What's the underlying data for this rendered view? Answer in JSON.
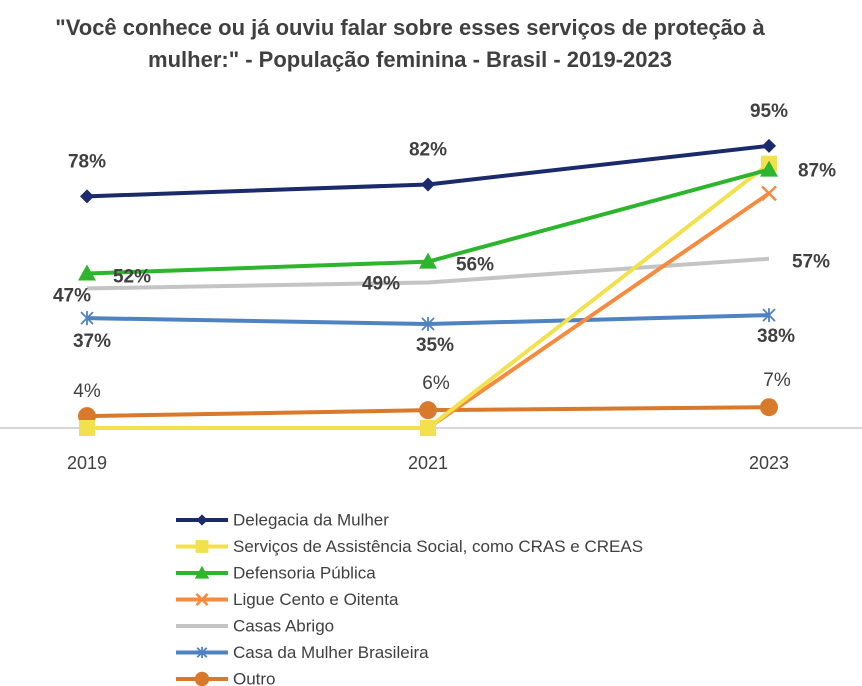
{
  "chart_data": {
    "type": "line",
    "title": "\"Você conhece ou já ouviu falar sobre esses serviços de proteção à mulher:\" - População feminina - Brasil - 2019-2023",
    "categories": [
      "2019",
      "2021",
      "2023"
    ],
    "ylim": [
      0,
      100
    ],
    "series": [
      {
        "name": "Delegacia da Mulher",
        "color": "#1b2a6b",
        "marker": "diamond",
        "values": [
          78,
          82,
          95
        ],
        "value_labels": [
          "78%",
          "82%",
          "95%"
        ]
      },
      {
        "name": "Serviços de Assistência Social, como CRAS e CREAS",
        "color": "#f2e14c",
        "marker": "square",
        "values": [
          0,
          0,
          89
        ]
      },
      {
        "name": "Defensoria Pública",
        "color": "#2db52d",
        "marker": "triangle",
        "values": [
          52,
          56,
          87
        ],
        "value_labels": [
          "52%",
          "56%",
          "87%"
        ]
      },
      {
        "name": "Ligue Cento e Oitenta",
        "color": "#f58b3f",
        "marker": "x",
        "values": [
          0,
          0,
          79
        ]
      },
      {
        "name": "Casas Abrigo",
        "color": "#c4c4c4",
        "marker": "none",
        "values": [
          47,
          49,
          57
        ],
        "value_labels": [
          "47%",
          "49%",
          "57%"
        ]
      },
      {
        "name": "Casa da Mulher Brasileira",
        "color": "#4f82c0",
        "marker": "star",
        "values": [
          37,
          35,
          38
        ],
        "value_labels": [
          "37%",
          "35%",
          "38%"
        ]
      },
      {
        "name": "Outro",
        "color": "#d9792b",
        "marker": "circle",
        "values": [
          4,
          6,
          7
        ],
        "value_labels": [
          "4%",
          "6%",
          "7%"
        ]
      }
    ]
  }
}
